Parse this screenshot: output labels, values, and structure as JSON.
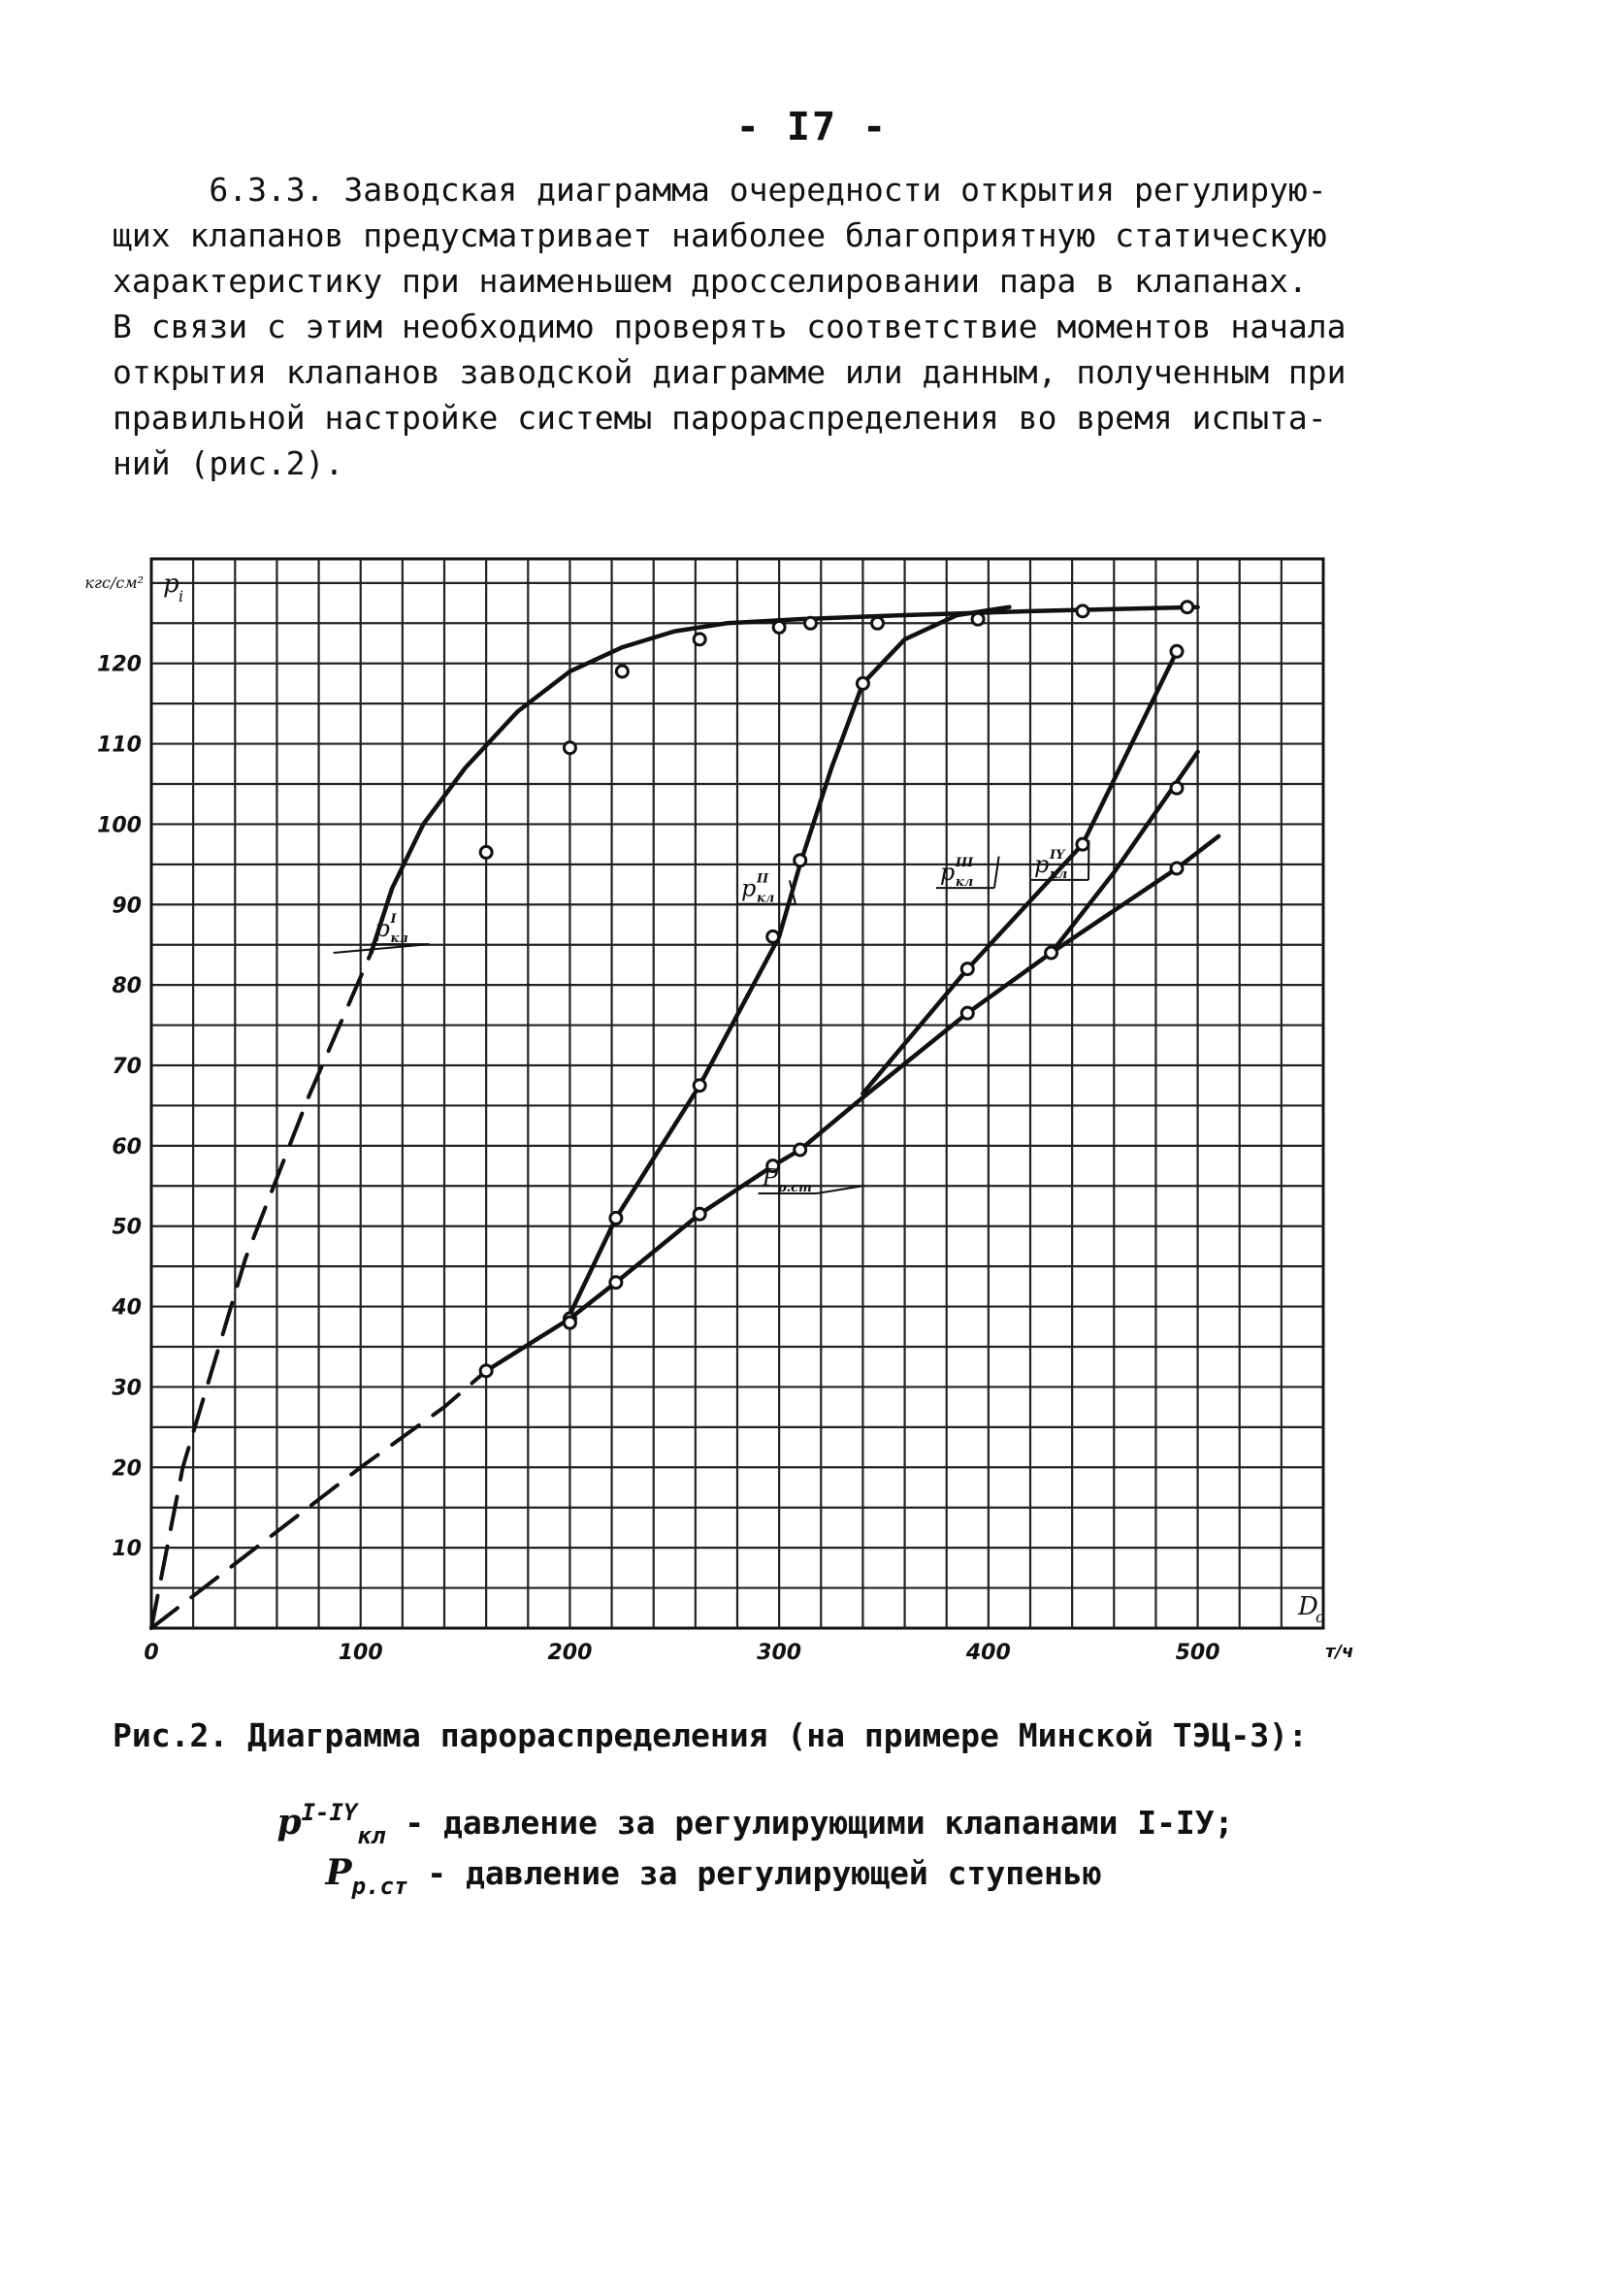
{
  "page": {
    "number": "- I7 -"
  },
  "text": {
    "lines": [
      "     6.3.3. Заводская диаграмма очередности открытия регулирую-",
      "щих клапанов предусматривает наиболее благоприятную статическую",
      "характеристику при наименьшем дросселировании пара в клапанах.",
      "В связи с этим необходимо проверять соответствие моментов начала",
      "открытия клапанов заводской диаграмме или данным, полученным при",
      "правильной настройке системы парораспределения во время испыта-",
      "ний (рис.2)."
    ]
  },
  "caption": {
    "title": "Рис.2. Диаграмма парораспределения (на примере Минской ТЭЦ-3):",
    "legend": [
      {
        "symbol": "p",
        "superscript": "I-IY",
        "subscript": "кл",
        "text": " - давление за регулирующими клапанами I-IУ;"
      },
      {
        "symbol": "P",
        "superscript": "",
        "subscript": "р.ст",
        "text": " - давление за регулирующей ступенью"
      }
    ]
  },
  "chart_data": {
    "type": "line",
    "x_axis": {
      "label": "D",
      "label_subscript": "o",
      "unit": "т/ч",
      "range": [
        0,
        560
      ],
      "ticks": [
        0,
        100,
        200,
        300,
        400,
        500
      ],
      "tick_labels": [
        "0",
        "100",
        "200",
        "300",
        "400",
        "500"
      ]
    },
    "y_axis": {
      "label": "p",
      "label_subscript": "i",
      "unit": "кгс/см²",
      "range": [
        0,
        133
      ],
      "ticks": [
        10,
        20,
        30,
        40,
        50,
        60,
        70,
        80,
        90,
        100,
        110,
        120
      ],
      "tick_labels": [
        "10",
        "20",
        "30",
        "40",
        "50",
        "60",
        "70",
        "80",
        "90",
        "100",
        "110",
        "120"
      ]
    },
    "grid": true,
    "series": [
      {
        "name": "p I кл",
        "label_main": "p",
        "label_sup": "I",
        "label_sub": "кл",
        "dashed_segment": [
          [
            0,
            0
          ],
          [
            15,
            20
          ],
          [
            45,
            46
          ],
          [
            75,
            66
          ],
          [
            105,
            84
          ]
        ],
        "solid_segment": [
          [
            105,
            84
          ],
          [
            115,
            92
          ],
          [
            130,
            100
          ],
          [
            150,
            107
          ],
          [
            175,
            114
          ],
          [
            200,
            119
          ],
          [
            225,
            122
          ],
          [
            250,
            124
          ],
          [
            275,
            125
          ],
          [
            310,
            125.5
          ],
          [
            360,
            126
          ],
          [
            420,
            126.5
          ],
          [
            500,
            127
          ]
        ],
        "points": [
          [
            160,
            96.5
          ],
          [
            200,
            109.5
          ],
          [
            225,
            119
          ],
          [
            262,
            123
          ],
          [
            300,
            124.5
          ],
          [
            315,
            125
          ],
          [
            347,
            125
          ],
          [
            395,
            125.5
          ],
          [
            445,
            126.5
          ],
          [
            495,
            127
          ]
        ]
      },
      {
        "name": "p II кл",
        "label_main": "p",
        "label_sup": "II",
        "label_sub": "кл",
        "solid_segment": [
          [
            200,
            39
          ],
          [
            222,
            51
          ],
          [
            262,
            67.5
          ],
          [
            300,
            86
          ],
          [
            310,
            95
          ],
          [
            325,
            107
          ],
          [
            340,
            117.5
          ],
          [
            360,
            123
          ],
          [
            385,
            126
          ],
          [
            410,
            127
          ]
        ],
        "points": [
          [
            200,
            38.5
          ],
          [
            222,
            51
          ],
          [
            262,
            67.5
          ],
          [
            297,
            86
          ],
          [
            310,
            95.5
          ],
          [
            340,
            117.5
          ]
        ]
      },
      {
        "name": "p III кл",
        "label_main": "p",
        "label_sup": "III",
        "label_sub": "кл",
        "solid_segment": [
          [
            340,
            66.5
          ],
          [
            390,
            82
          ],
          [
            445,
            97.5
          ],
          [
            490,
            121.5
          ]
        ],
        "points": [
          [
            390,
            82
          ],
          [
            445,
            97.5
          ],
          [
            490,
            121.5
          ]
        ]
      },
      {
        "name": "p IV кл",
        "label_main": "p",
        "label_sup": "IY",
        "label_sub": "кл",
        "solid_segment": [
          [
            430,
            84
          ],
          [
            460,
            94
          ],
          [
            500,
            109
          ]
        ],
        "points": [
          [
            490,
            104.5
          ]
        ]
      },
      {
        "name": "P р.ст",
        "label_main": "P",
        "label_sup": "",
        "label_sub": "р.ст",
        "dashed_segment": [
          [
            0,
            0
          ],
          [
            50,
            10
          ],
          [
            100,
            20
          ],
          [
            140,
            27.5
          ],
          [
            160,
            32
          ]
        ],
        "solid_segment": [
          [
            160,
            32
          ],
          [
            200,
            38.5
          ],
          [
            222,
            43
          ],
          [
            262,
            51.5
          ],
          [
            297,
            57.5
          ],
          [
            310,
            59.5
          ],
          [
            340,
            66
          ],
          [
            390,
            76.5
          ],
          [
            430,
            84
          ],
          [
            490,
            94.5
          ],
          [
            510,
            98.5
          ]
        ],
        "points": [
          [
            160,
            32
          ],
          [
            200,
            38
          ],
          [
            222,
            43
          ],
          [
            262,
            51.5
          ],
          [
            297,
            57.5
          ],
          [
            310,
            59.5
          ],
          [
            390,
            76.5
          ],
          [
            430,
            84
          ],
          [
            490,
            94.5
          ]
        ]
      }
    ]
  }
}
